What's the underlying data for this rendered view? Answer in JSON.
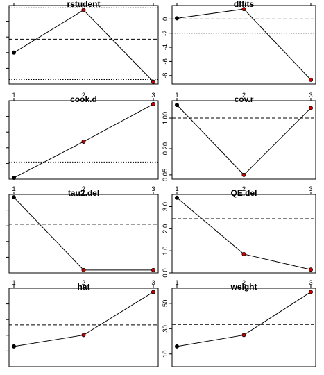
{
  "chart_data": [
    {
      "type": "line",
      "title": "rstudent",
      "x": [
        1,
        2,
        3
      ],
      "values": [
        -0.9,
        1.0,
        -2.2
      ],
      "ylim": [
        -2.3,
        1.2
      ],
      "yticks": [],
      "xticks": [],
      "refs": [
        {
          "y": 1.1,
          "style": "dotted"
        },
        {
          "y": -0.3,
          "style": "dashed"
        },
        {
          "y": -2.1,
          "style": "dotted"
        }
      ],
      "point_colors": [
        "#000000",
        "#cc0000",
        "#cc0000"
      ]
    },
    {
      "type": "line",
      "title": "dffits",
      "x": [
        1,
        2,
        3
      ],
      "values": [
        0.1,
        1.4,
        -8.6
      ],
      "ylim": [
        -9.2,
        1.9
      ],
      "yticks": [
        "0",
        "-2",
        "-4",
        "-6",
        "-8"
      ],
      "ytick_values": [
        0,
        -2,
        -4,
        -6,
        -8
      ],
      "xticks": [],
      "refs": [
        {
          "y": 0,
          "style": "dashed"
        },
        {
          "y": -2.0,
          "style": "dotted"
        }
      ],
      "point_colors": [
        "#000000",
        "#cc0000",
        "#cc0000"
      ]
    },
    {
      "type": "line",
      "title": "cook.d",
      "x": [
        1,
        2,
        3
      ],
      "values": [
        0.02,
        0.55,
        1.1
      ],
      "ylim": [
        0.0,
        1.15
      ],
      "yticks": [],
      "xticks": [
        "1",
        "2",
        "3"
      ],
      "refs": [
        {
          "y": 0.25,
          "style": "dotted"
        }
      ],
      "point_colors": [
        "#000000",
        "#cc0000",
        "#cc0000"
      ]
    },
    {
      "type": "line",
      "title": "cov.r",
      "x": [
        1,
        2,
        3
      ],
      "values": [
        2.0,
        0.05,
        1.7
      ],
      "ylim": [
        0.04,
        2.5
      ],
      "yscale": "log",
      "yticks": [
        "1.00",
        "0.20",
        "0.05"
      ],
      "ytick_values": [
        1.0,
        0.2,
        0.05
      ],
      "xticks": [
        "1",
        "2",
        "3"
      ],
      "refs": [
        {
          "y": 1.0,
          "style": "dashed"
        }
      ],
      "point_colors": [
        "#000000",
        "#cc0000",
        "#cc0000"
      ]
    },
    {
      "type": "line",
      "title": "tau2.del",
      "x": [
        1,
        2,
        3
      ],
      "values": [
        1.0,
        0.0,
        0.0
      ],
      "ylim": [
        -0.04,
        1.04
      ],
      "yticks": [],
      "xticks": [
        "1",
        "2",
        "3"
      ],
      "refs": [
        {
          "y": 0.63,
          "style": "dashed"
        }
      ],
      "point_colors": [
        "#000000",
        "#cc0000",
        "#cc0000"
      ]
    },
    {
      "type": "line",
      "title": "QE.del",
      "x": [
        1,
        2,
        3
      ],
      "values": [
        3.4,
        0.85,
        0.15
      ],
      "ylim": [
        0.0,
        3.55
      ],
      "yticks": [
        "0.0",
        "1.0",
        "2.0",
        "3.0"
      ],
      "ytick_values": [
        0,
        1,
        2,
        3
      ],
      "xticks": [
        "1",
        "2",
        "3"
      ],
      "refs": [
        {
          "y": 2.45,
          "style": "dashed"
        }
      ],
      "point_colors": [
        "#000000",
        "#cc0000",
        "#cc0000"
      ]
    },
    {
      "type": "line",
      "title": "hat",
      "x": [
        1,
        2,
        3
      ],
      "values": [
        0.16,
        0.25,
        0.59
      ],
      "ylim": [
        0.0,
        0.62
      ],
      "yticks": [],
      "xticks": [
        "1",
        "2",
        "3"
      ],
      "refs": [
        {
          "y": 0.33,
          "style": "dashed"
        }
      ],
      "point_colors": [
        "#000000",
        "#cc0000",
        "#cc0000"
      ]
    },
    {
      "type": "line",
      "title": "weight",
      "x": [
        1,
        2,
        3
      ],
      "values": [
        16,
        25,
        59
      ],
      "ylim": [
        0,
        62
      ],
      "yticks": [
        "10",
        "30",
        "50"
      ],
      "ytick_values": [
        10,
        30,
        50
      ],
      "xticks": [
        "1",
        "2",
        "3"
      ],
      "refs": [
        {
          "y": 33.3,
          "style": "dashed"
        }
      ],
      "point_colors": [
        "#000000",
        "#cc0000",
        "#cc0000"
      ]
    }
  ]
}
